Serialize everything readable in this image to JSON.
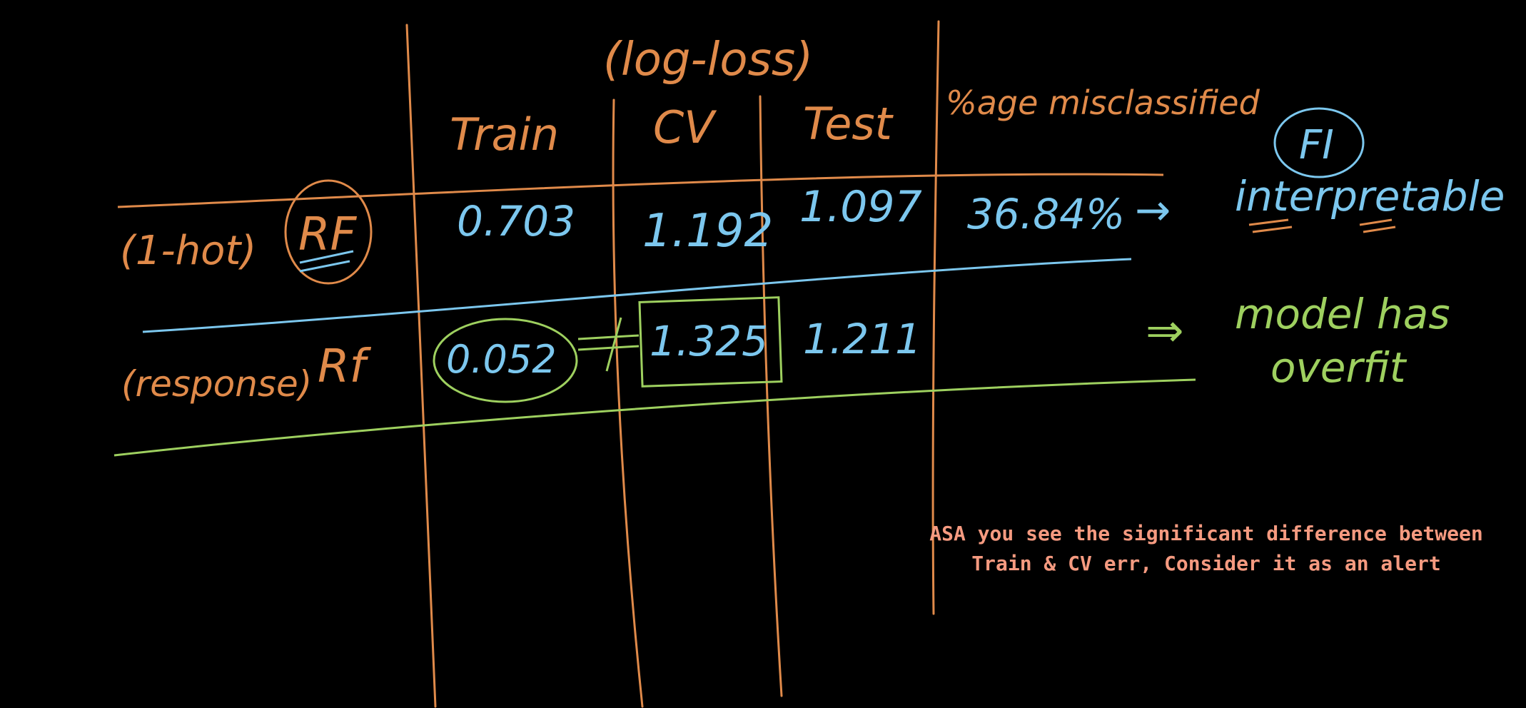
{
  "board": {
    "header": {
      "metric_label": "(log-loss)",
      "columns": [
        "Train",
        "CV",
        "Test",
        "%age misclassified"
      ],
      "fi_label": "FI"
    },
    "rows": [
      {
        "encoding": "(1-hot)",
        "model": "RF",
        "train": "0.703",
        "cv": "1.192",
        "test": "1.097",
        "misclassified": "36.84%",
        "arrow": "→",
        "remark": "interpretable"
      },
      {
        "encoding": "(response)",
        "model": "Rf",
        "train": "0.052",
        "cv": "1.325",
        "test": "1.211",
        "misclassified": "",
        "arrow": "⇒",
        "remark_line1": "model has",
        "remark_line2": "overfit"
      }
    ]
  },
  "note": {
    "line1": "ASA you see the significant difference between",
    "line2": "Train & CV err, Consider it as an alert"
  },
  "colors": {
    "background": "#000000",
    "orange": "#e08a4a",
    "blue": "#7cc7ee",
    "green": "#9ed05f",
    "note": "#f59a80"
  }
}
